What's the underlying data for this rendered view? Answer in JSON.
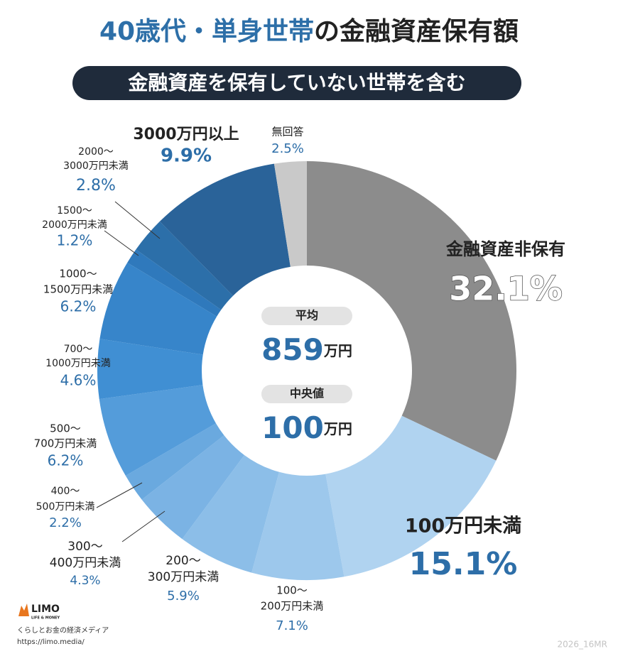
{
  "chart_data": {
    "type": "donut",
    "title": {
      "highlight": "40歳代・単身世帯",
      "rest": "の金融資産保有額"
    },
    "subtitle": "金融資産を保有していない世帯を含む",
    "categories": [
      [
        "金融資産非保有"
      ],
      [
        "100万円未満"
      ],
      [
        "100〜",
        "200万円未満"
      ],
      [
        "200〜",
        "300万円未満"
      ],
      [
        "300〜",
        "400万円未満"
      ],
      [
        "400〜",
        "500万円未満"
      ],
      [
        "500〜",
        "700万円未満"
      ],
      [
        "700〜",
        "1000万円未満"
      ],
      [
        "1000〜",
        "1500万円未満"
      ],
      [
        "1500〜",
        "2000万円未満"
      ],
      [
        "2000〜",
        "3000万円未満"
      ],
      [
        "3000万円以上"
      ],
      [
        "無回答"
      ]
    ],
    "values": [
      32.1,
      15.1,
      7.1,
      5.9,
      4.3,
      2.2,
      6.2,
      4.6,
      6.2,
      1.2,
      2.8,
      9.9,
      2.5
    ],
    "value_labels": [
      "32.1%",
      "15.1%",
      "7.1%",
      "5.9%",
      "4.3%",
      "2.2%",
      "6.2%",
      "4.6%",
      "6.2%",
      "1.2%",
      "2.8%",
      "9.9%",
      "2.5%"
    ],
    "colors": [
      "#8c8c8c",
      "#b0d3f0",
      "#9dc8ec",
      "#8cbee8",
      "#7bb3e4",
      "#6aa9df",
      "#549cda",
      "#408fd3",
      "#3785ca",
      "#2f79bc",
      "#2c6fa9",
      "#2a6399",
      "#c9c9c9"
    ],
    "center": [
      {
        "label": "平均",
        "value": 859,
        "unit": "万円"
      },
      {
        "label": "中央値",
        "value": 100,
        "unit": "万円"
      }
    ],
    "footer": {
      "brand": "LIMO",
      "brand_sub": "LIFE & MONEY",
      "tagline": "くらしとお金の経済メディア",
      "url": "https://limo.media/",
      "code": "2026_16MR"
    }
  }
}
